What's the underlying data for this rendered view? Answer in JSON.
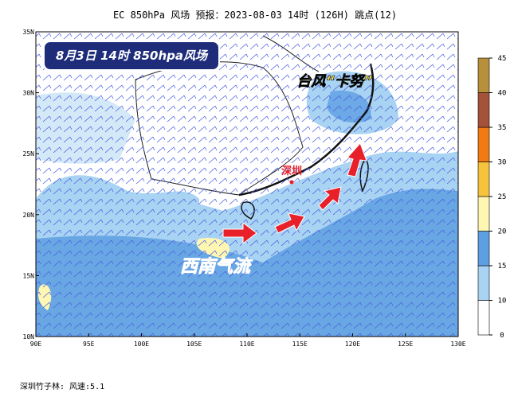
{
  "title": "EC 850hPa 风场  预报：2023-08-03 14时 (126H) 跳点(12)",
  "banner": "8月3日 14时 850hpa风场",
  "labels": {
    "typhoon": "台风“卡努”",
    "city": "深圳",
    "flow": "西南气流"
  },
  "x_ticks": [
    {
      "value": 90,
      "label": "90E"
    },
    {
      "value": 95,
      "label": "95E"
    },
    {
      "value": 100,
      "label": "100E"
    },
    {
      "value": 105,
      "label": "105E"
    },
    {
      "value": 110,
      "label": "110E"
    },
    {
      "value": 115,
      "label": "115E"
    },
    {
      "value": 120,
      "label": "120E"
    },
    {
      "value": 125,
      "label": "125E"
    },
    {
      "value": 130,
      "label": "130E"
    }
  ],
  "y_ticks": [
    {
      "value": 10,
      "label": "10N"
    },
    {
      "value": 15,
      "label": "15N"
    },
    {
      "value": 20,
      "label": "20N"
    },
    {
      "value": 25,
      "label": "25N"
    },
    {
      "value": 30,
      "label": "30N"
    },
    {
      "value": 35,
      "label": "35N"
    }
  ],
  "colorbar": {
    "ticks": [
      0,
      10,
      15,
      20,
      25,
      30,
      35,
      40,
      45
    ],
    "colors": [
      "#ffffff",
      "#a9d3f2",
      "#5d9fe2",
      "#fff6b2",
      "#f7c23c",
      "#f27a12",
      "#a5523a",
      "#b8903c"
    ]
  },
  "footer": "深圳竹子林:  风速:5.1"
}
